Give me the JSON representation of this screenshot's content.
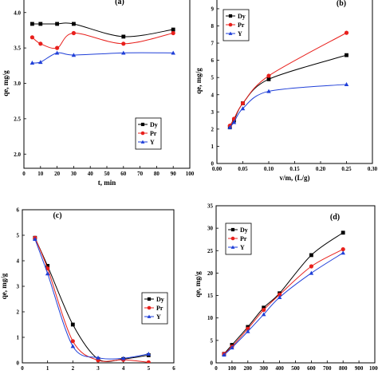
{
  "colors": {
    "Dy": "#000000",
    "Pr": "#e8201c",
    "Y": "#1f3fd8"
  },
  "chart_data": [
    {
      "type": "line",
      "panel_label": "(a)",
      "xlabel": "t, min",
      "ylabel": "qe, mg/g",
      "xlim": [
        0,
        100
      ],
      "ylim": [
        1.8,
        4.2
      ],
      "xticks": [
        0,
        10,
        20,
        30,
        40,
        50,
        60,
        70,
        80,
        90,
        100
      ],
      "yticks": [
        2.0,
        2.5,
        3.0,
        3.5,
        4.0
      ],
      "y_tick_labels": [
        "2.0",
        "2.5",
        "3.0",
        "3.5",
        "4.0"
      ],
      "legend": "bottom-right",
      "series": [
        {
          "name": "Dy",
          "marker": "square",
          "x": [
            5,
            10,
            20,
            30,
            60,
            90
          ],
          "y": [
            3.84,
            3.84,
            3.84,
            3.84,
            3.66,
            3.76
          ]
        },
        {
          "name": "Pr",
          "marker": "circle",
          "x": [
            5,
            10,
            20,
            30,
            60,
            90
          ],
          "y": [
            3.65,
            3.56,
            3.5,
            3.71,
            3.56,
            3.71
          ]
        },
        {
          "name": "Y",
          "marker": "triangle",
          "x": [
            5,
            10,
            20,
            30,
            60,
            90
          ],
          "y": [
            3.29,
            3.3,
            3.43,
            3.4,
            3.43,
            3.43
          ]
        }
      ]
    },
    {
      "type": "line",
      "panel_label": "(b)",
      "xlabel": "v/m, (L/g)",
      "ylabel": "qe, mg/g",
      "xlim": [
        0,
        0.3
      ],
      "ylim": [
        0,
        9.6
      ],
      "xticks": [
        0,
        0.05,
        0.1,
        0.15,
        0.2,
        0.25,
        0.3
      ],
      "x_tick_labels": [
        "0.00",
        "0.05",
        "0.10",
        "0.15",
        "0.20",
        "0.25",
        "0.30"
      ],
      "yticks": [
        0,
        1,
        2,
        3,
        4,
        5,
        6,
        7,
        8,
        9
      ],
      "legend": "top-left",
      "series": [
        {
          "name": "Dy",
          "marker": "square",
          "x": [
            0.025,
            0.033,
            0.05,
            0.1,
            0.25
          ],
          "y": [
            2.1,
            2.5,
            3.5,
            4.9,
            6.3
          ]
        },
        {
          "name": "Pr",
          "marker": "circle",
          "x": [
            0.025,
            0.033,
            0.05,
            0.1,
            0.25
          ],
          "y": [
            2.2,
            2.6,
            3.5,
            5.1,
            7.6
          ]
        },
        {
          "name": "Y",
          "marker": "triangle",
          "x": [
            0.025,
            0.033,
            0.05,
            0.1,
            0.25
          ],
          "y": [
            2.1,
            2.4,
            3.2,
            4.2,
            4.6
          ]
        }
      ]
    },
    {
      "type": "line",
      "panel_label": "(c)",
      "xlabel": "",
      "ylabel": "qe, mg/g",
      "xlim": [
        0,
        6
      ],
      "ylim": [
        0,
        6
      ],
      "xticks": [
        0,
        1,
        2,
        3,
        4,
        5,
        6
      ],
      "yticks": [
        0,
        1,
        2,
        3,
        4,
        5,
        6
      ],
      "legend": "center-right",
      "series": [
        {
          "name": "Dy",
          "marker": "square",
          "x": [
            0.5,
            1,
            2,
            3,
            4,
            5
          ],
          "y": [
            4.9,
            3.8,
            1.5,
            0.15,
            0.15,
            0.3
          ]
        },
        {
          "name": "Pr",
          "marker": "circle",
          "x": [
            0.5,
            1,
            2,
            3,
            4,
            5
          ],
          "y": [
            4.9,
            3.7,
            0.85,
            0.1,
            0.12,
            0.02
          ]
        },
        {
          "name": "Y",
          "marker": "triangle",
          "x": [
            0.5,
            1,
            2,
            3,
            4,
            5
          ],
          "y": [
            4.85,
            3.5,
            0.65,
            0.2,
            0.18,
            0.35
          ]
        }
      ]
    },
    {
      "type": "line",
      "panel_label": "(d)",
      "xlabel": "",
      "ylabel": "qe, mg/g",
      "xlim": [
        0,
        1000
      ],
      "ylim": [
        0,
        35
      ],
      "xticks": [
        0,
        100,
        200,
        300,
        400,
        500,
        600,
        700,
        800,
        900,
        1000
      ],
      "yticks": [
        0,
        5,
        10,
        15,
        20,
        25,
        30,
        35
      ],
      "legend": "top-left",
      "series": [
        {
          "name": "Dy",
          "marker": "square",
          "x": [
            50,
            100,
            200,
            300,
            400,
            600,
            800
          ],
          "y": [
            2,
            4,
            8,
            12.3,
            15.5,
            24,
            29
          ]
        },
        {
          "name": "Pr",
          "marker": "circle",
          "x": [
            50,
            100,
            200,
            300,
            400,
            600,
            800
          ],
          "y": [
            2,
            3.6,
            7.6,
            11.8,
            15.2,
            21.5,
            25.3
          ]
        },
        {
          "name": "Y",
          "marker": "triangle",
          "x": [
            50,
            100,
            200,
            300,
            400,
            600,
            800
          ],
          "y": [
            1.8,
            3.4,
            7,
            10.8,
            14.6,
            20,
            24.5
          ]
        }
      ]
    }
  ]
}
